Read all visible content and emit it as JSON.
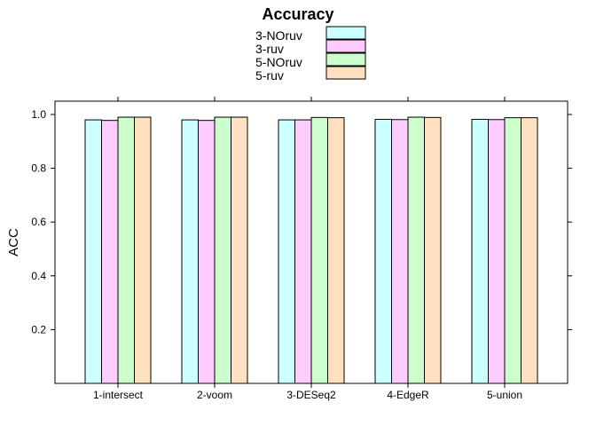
{
  "chart_data": {
    "type": "bar",
    "title": "Accuracy",
    "ylabel": "ACC",
    "xlabel": "",
    "categories": [
      "1-intersect",
      "2-voom",
      "3-DESeq2",
      "4-EdgeR",
      "5-union"
    ],
    "series": [
      {
        "name": "3-NOruv",
        "color": "#ccffff",
        "values": [
          0.98,
          0.98,
          0.98,
          0.982,
          0.982
        ]
      },
      {
        "name": "3-ruv",
        "color": "#ffccff",
        "values": [
          0.978,
          0.978,
          0.98,
          0.981,
          0.981
        ]
      },
      {
        "name": "5-NOruv",
        "color": "#ccffcc",
        "values": [
          0.99,
          0.99,
          0.989,
          0.99,
          0.988
        ]
      },
      {
        "name": "5-ruv",
        "color": "#ffe0c0",
        "values": [
          0.99,
          0.99,
          0.988,
          0.989,
          0.988
        ]
      }
    ],
    "ylim": [
      0,
      1.0
    ],
    "yticks": [
      0.2,
      0.4,
      0.6,
      0.8,
      1.0
    ],
    "ytick_labels": [
      "0.2",
      "0.4",
      "0.6",
      "0.8",
      "1.0"
    ],
    "grid": false,
    "legend_position": "top"
  }
}
